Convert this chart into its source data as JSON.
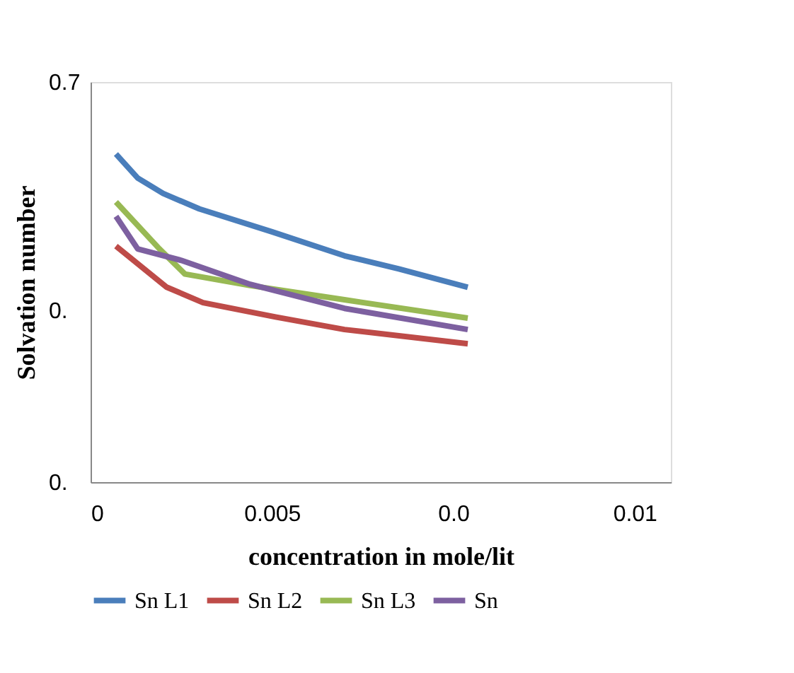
{
  "chart_data": {
    "type": "line",
    "xlabel": "concentration in mole/lit",
    "ylabel": "Solvation number",
    "xlim": [
      0,
      0.016
    ],
    "xticks": [
      0,
      0.005,
      {
        "value": 0.01,
        "label": "0.0"
      },
      {
        "value": 0.015,
        "label": "0.01"
      }
    ],
    "ylim": [
      0,
      0.7
    ],
    "yticks": [
      {
        "value": 0,
        "label": "0."
      },
      {
        "value": 0.3,
        "label": "0."
      },
      0.7
    ],
    "grid": false,
    "legend": "bottom",
    "marker": "none",
    "line_style": "solid",
    "series": [
      {
        "name": "Sn L1",
        "color": "#4a7ebb",
        "x": [
          0.0007,
          0.0013,
          0.002,
          0.003,
          0.005,
          0.007,
          0.0085,
          0.0104
        ],
        "values": [
          0.574,
          0.532,
          0.505,
          0.478,
          0.438,
          0.396,
          0.373,
          0.341
        ]
      },
      {
        "name": "Sn L2",
        "color": "#be4b48",
        "x": [
          0.0007,
          0.0021,
          0.0031,
          0.0051,
          0.007,
          0.0104
        ],
        "values": [
          0.413,
          0.341,
          0.314,
          0.289,
          0.267,
          0.242
        ]
      },
      {
        "name": "Sn L3",
        "color": "#98b954",
        "x": [
          0.0007,
          0.0019,
          0.0026,
          0.0044,
          0.007,
          0.0104
        ],
        "values": [
          0.49,
          0.408,
          0.364,
          0.344,
          0.319,
          0.287
        ]
      },
      {
        "name": "Sn",
        "color": "#7d60a0",
        "x": [
          0.0007,
          0.0013,
          0.0025,
          0.0044,
          0.007,
          0.0104
        ],
        "values": [
          0.465,
          0.408,
          0.388,
          0.346,
          0.304,
          0.267
        ]
      }
    ]
  }
}
